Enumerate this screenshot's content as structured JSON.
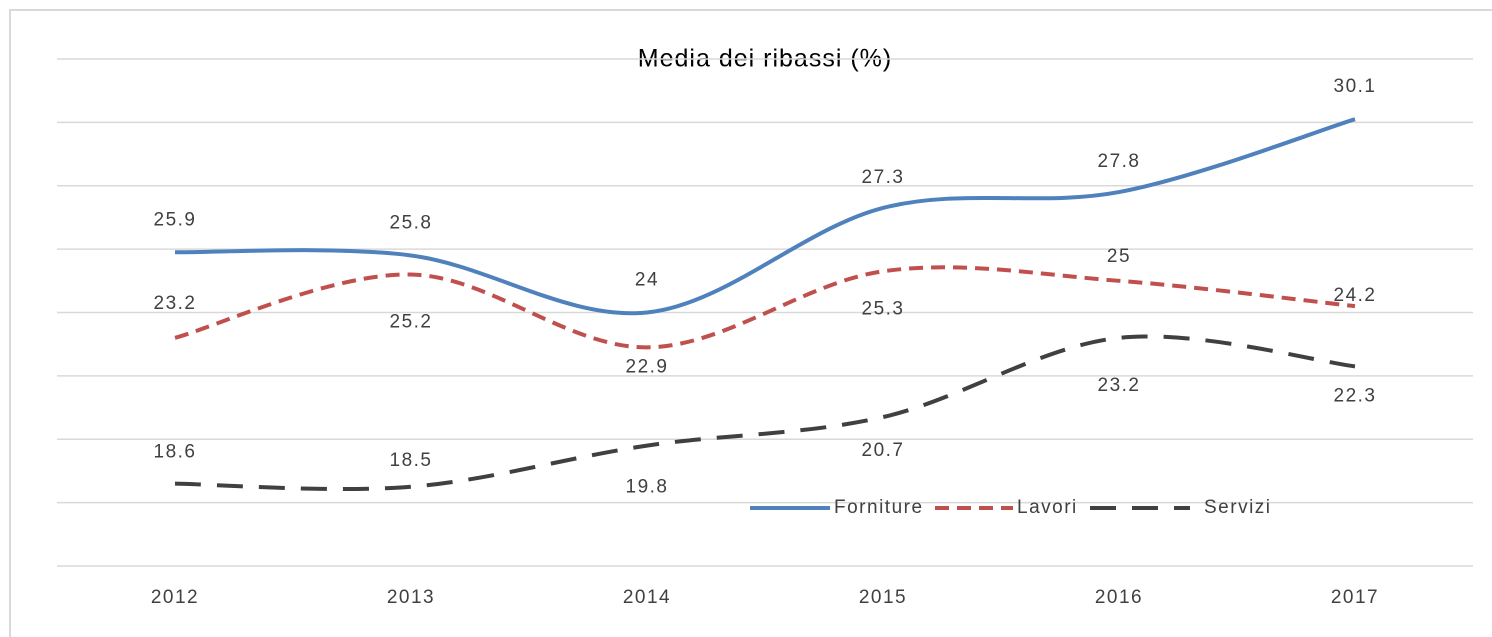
{
  "chart_data": {
    "type": "line",
    "title": "Media dei ribassi (%)",
    "categories": [
      "2012",
      "2013",
      "2014",
      "2015",
      "2016",
      "2017"
    ],
    "series": [
      {
        "name": "Forniture",
        "color": "#4f81bd",
        "dash": "solid",
        "values": [
          25.9,
          25.8,
          24,
          27.3,
          27.8,
          30.1
        ]
      },
      {
        "name": "Lavori",
        "color": "#c0504d",
        "dash": "dashed",
        "values": [
          23.2,
          25.2,
          22.9,
          25.3,
          25,
          24.2
        ]
      },
      {
        "name": "Servizi",
        "color": "#404040",
        "dash": "long-dashed",
        "values": [
          18.6,
          18.5,
          19.8,
          20.7,
          23.2,
          22.3
        ]
      }
    ],
    "ylim": [
      16,
      32
    ],
    "yticks": [
      16,
      18,
      20,
      22,
      24,
      26,
      28,
      30,
      32
    ],
    "grid": true,
    "legend": "bottom-right",
    "smooth": true
  }
}
